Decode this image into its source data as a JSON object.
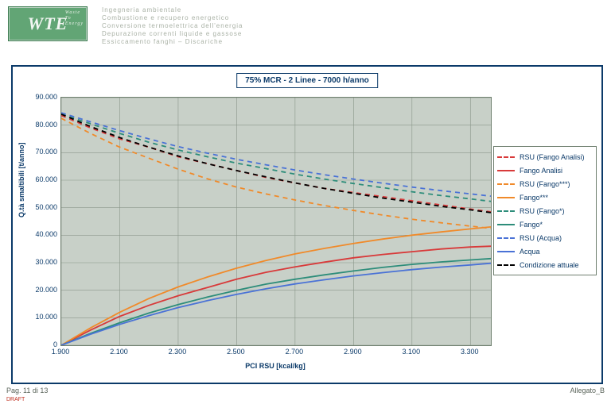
{
  "header": {
    "logo_main": "WTE",
    "logo_sub": "Waste\nTo\nEnergy",
    "lines": [
      "Ingegneria ambientale",
      "Combustione e recupero energetico",
      "Conversione termoelettrica dell'energia",
      "Depurazione correnti liquide e gassose",
      "Essiccamento fanghi – Discariche"
    ]
  },
  "footer": {
    "left": "Pag. 11 di 13",
    "left_red": "DRAFT",
    "right": "Allegato_B"
  },
  "chart": {
    "type": "line",
    "title": "75% MCR - 2 Linee - 7000 h/anno",
    "title_fontsize": 10,
    "title_color": "#0b3a69",
    "background_color": "#c8d0c8",
    "grid_color": "#8a968a",
    "frame_color": "#0b3a69",
    "label_color": "#0b3a69",
    "label_fontsize": 9,
    "xlabel": "PCI RSU [kcal/kg]",
    "ylabel": "Q.tà smaltibili [t/anno]",
    "xlim": [
      1900,
      3370
    ],
    "ylim": [
      0,
      90000
    ],
    "xtick_step": 200,
    "ytick_step": 10000,
    "xtick_format": "thousand_dot",
    "ytick_format": "thousand_dot",
    "line_width": 1.8,
    "legend_position": "right",
    "aspect_w": 540,
    "aspect_h": 312,
    "series": [
      {
        "name": "RSU (Fango Analisi)",
        "color": "#d83a3a",
        "dash": "6,5",
        "x": [
          1900,
          2000,
          2100,
          2200,
          2300,
          2400,
          2500,
          2600,
          2700,
          2800,
          2900,
          3000,
          3100,
          3200,
          3300,
          3370
        ],
        "y": [
          83500,
          79000,
          75000,
          72000,
          68500,
          66000,
          63500,
          61000,
          59000,
          57000,
          55500,
          54000,
          52500,
          51000,
          49500,
          48500
        ]
      },
      {
        "name": "Fango Analisi",
        "color": "#d83a3a",
        "dash": "",
        "x": [
          1900,
          2000,
          2100,
          2200,
          2300,
          2400,
          2500,
          2600,
          2700,
          2800,
          2900,
          3000,
          3100,
          3200,
          3300,
          3370
        ],
        "y": [
          0,
          5500,
          10500,
          14500,
          18000,
          21000,
          24000,
          26500,
          28500,
          30200,
          31800,
          33000,
          34000,
          35000,
          35700,
          36000
        ]
      },
      {
        "name": "RSU (Fango***)",
        "color": "#f08a2a",
        "dash": "6,5",
        "x": [
          1900,
          2000,
          2100,
          2200,
          2300,
          2400,
          2500,
          2600,
          2700,
          2800,
          2900,
          3000,
          3100,
          3200,
          3300,
          3370
        ],
        "y": [
          82500,
          77000,
          72000,
          68000,
          64000,
          60500,
          57500,
          55000,
          52800,
          50800,
          49000,
          47300,
          45800,
          44500,
          43300,
          42500
        ]
      },
      {
        "name": "Fango***",
        "color": "#f08a2a",
        "dash": "",
        "x": [
          1900,
          2000,
          2100,
          2200,
          2300,
          2400,
          2500,
          2600,
          2700,
          2800,
          2900,
          3000,
          3100,
          3200,
          3300,
          3370
        ],
        "y": [
          0,
          6300,
          12000,
          17000,
          21200,
          24800,
          28000,
          30800,
          33200,
          35200,
          37000,
          38600,
          40000,
          41200,
          42300,
          43000
        ]
      },
      {
        "name": "RSU (Fango*)",
        "color": "#2d8d7a",
        "dash": "6,5",
        "x": [
          1900,
          2000,
          2100,
          2200,
          2300,
          2400,
          2500,
          2600,
          2700,
          2800,
          2900,
          3000,
          3100,
          3200,
          3300,
          3370
        ],
        "y": [
          84000,
          80500,
          77000,
          73800,
          71000,
          68500,
          66200,
          64200,
          62200,
          60400,
          58800,
          57300,
          55800,
          54400,
          53200,
          52300
        ]
      },
      {
        "name": "Fango*",
        "color": "#2d8d7a",
        "dash": "",
        "x": [
          1900,
          2000,
          2100,
          2200,
          2300,
          2400,
          2500,
          2600,
          2700,
          2800,
          2900,
          3000,
          3100,
          3200,
          3300,
          3370
        ],
        "y": [
          0,
          4300,
          8200,
          11700,
          14800,
          17500,
          20000,
          22200,
          24000,
          25600,
          27000,
          28300,
          29400,
          30300,
          31000,
          31500
        ]
      },
      {
        "name": "RSU (Acqua)",
        "color": "#4a72d6",
        "dash": "6,5",
        "x": [
          1900,
          2000,
          2100,
          2200,
          2300,
          2400,
          2500,
          2600,
          2700,
          2800,
          2900,
          3000,
          3100,
          3200,
          3300,
          3370
        ],
        "y": [
          84500,
          81200,
          78000,
          75000,
          72200,
          69800,
          67600,
          65600,
          63700,
          62000,
          60400,
          58900,
          57500,
          56200,
          55000,
          54200
        ]
      },
      {
        "name": "Acqua",
        "color": "#4a72d6",
        "dash": "",
        "x": [
          1900,
          2000,
          2100,
          2200,
          2300,
          2400,
          2500,
          2600,
          2700,
          2800,
          2900,
          3000,
          3100,
          3200,
          3300,
          3370
        ],
        "y": [
          0,
          4000,
          7600,
          10800,
          13700,
          16200,
          18500,
          20500,
          22300,
          23800,
          25200,
          26400,
          27500,
          28400,
          29200,
          29800
        ]
      },
      {
        "name": "Condizione attuale",
        "color": "#000000",
        "dash": "6,5",
        "x": [
          1900,
          2000,
          2100,
          2200,
          2300,
          2400,
          2500,
          2600,
          2700,
          2800,
          2900,
          3000,
          3100,
          3200,
          3300,
          3370
        ],
        "y": [
          84000,
          79500,
          75500,
          72000,
          68800,
          66000,
          63500,
          61200,
          59000,
          57000,
          55200,
          53500,
          52000,
          50500,
          49200,
          48200
        ]
      }
    ]
  }
}
